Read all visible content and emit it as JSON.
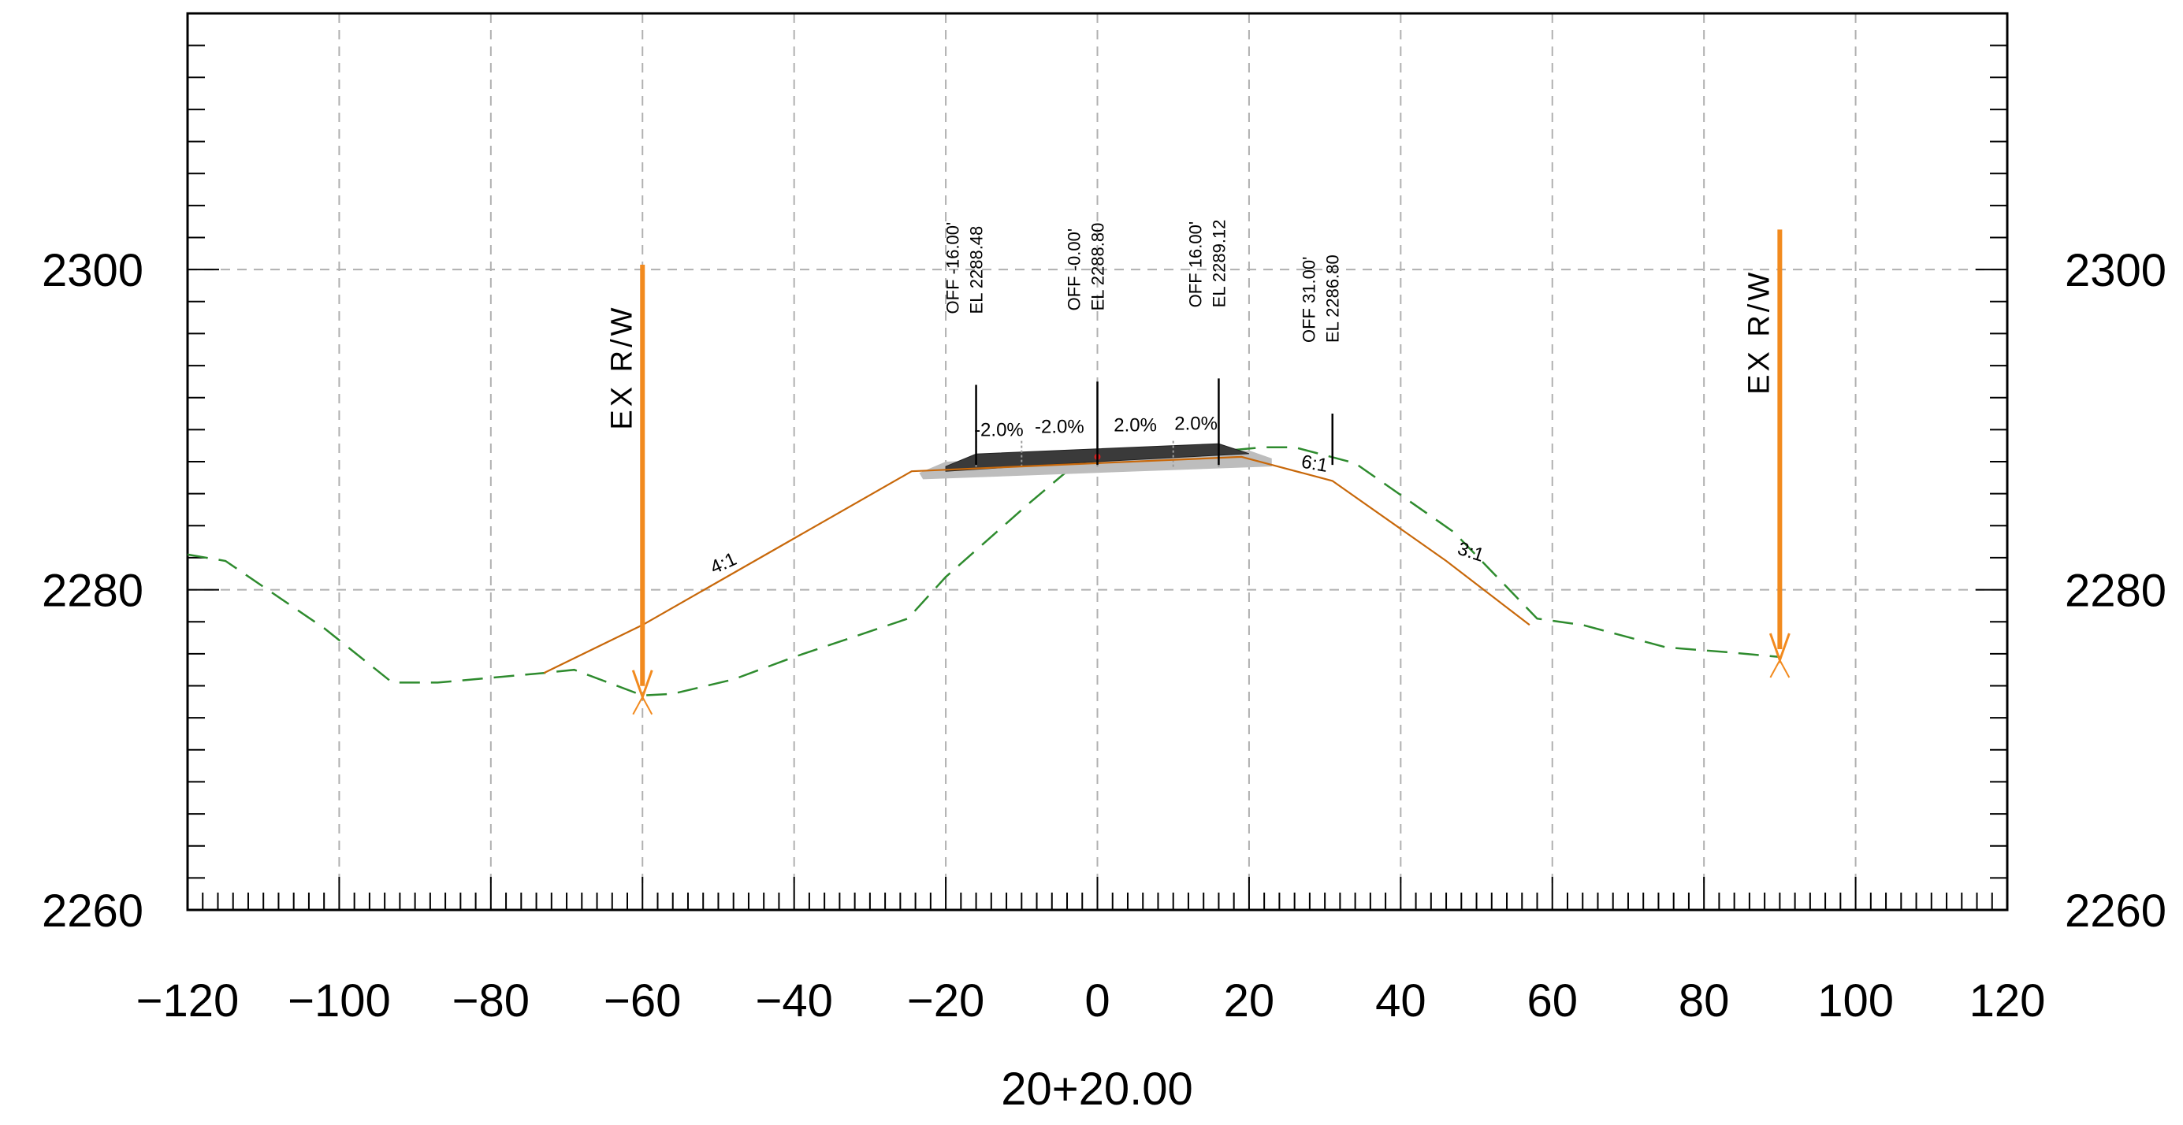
{
  "chart_data": {
    "type": "line",
    "title": "",
    "xlabel": "20+20.00",
    "ylabel": "",
    "xlim": [
      -120,
      120
    ],
    "ylim": [
      2260,
      2316
    ],
    "x_ticks": [
      -120,
      -100,
      -80,
      -60,
      -40,
      -20,
      0,
      20,
      40,
      60,
      80,
      100,
      120
    ],
    "y_ticks": [
      2260,
      2280,
      2300
    ],
    "grid": true,
    "colors": {
      "existing_ground": "#2e8b2e",
      "design_slope": "#c8680a",
      "right_of_way": "#f28a1e",
      "pavement": "#3a3a3a",
      "base": "#bdbdbd",
      "grid": "#b0b0b0"
    },
    "series": [
      {
        "role": "existing_ground",
        "style": "dashed",
        "x": [
          -120,
          -115,
          -102,
          -93,
          -87,
          -73,
          -69,
          -60,
          -56,
          -48,
          -40,
          -25,
          -20,
          -9,
          -3,
          10,
          22,
          26,
          34,
          47,
          58,
          64,
          75,
          83,
          90
        ],
        "y": [
          2282.2,
          2281.8,
          2277.6,
          2274.2,
          2274.2,
          2274.8,
          2275,
          2273.4,
          2273.5,
          2274.4,
          2275.8,
          2278.2,
          2280.8,
          2285.4,
          2287.8,
          2288.4,
          2288.9,
          2288.9,
          2287.9,
          2283.6,
          2278.2,
          2277.8,
          2276.4,
          2276.1,
          2275.8
        ]
      },
      {
        "role": "design_daylight",
        "style": "solid",
        "x": [
          -73,
          -60,
          -24.5,
          19,
          23,
          31,
          46,
          57
        ],
        "y": [
          2274.8,
          2277.8,
          2287.4,
          2288.3,
          2287.8,
          2286.8,
          2281.8,
          2277.8
        ]
      }
    ],
    "pavement": {
      "top_x": [
        -20,
        -16,
        0,
        16,
        20
      ],
      "top_y": [
        2288.0,
        2288.48,
        2288.8,
        2289.12,
        2288.7
      ]
    },
    "annotations": [
      {
        "x": -16,
        "y_top": 2292.8,
        "line1": "OFF -16.00'",
        "line2": "EL 2288.48"
      },
      {
        "x": 0,
        "y_top": 2293.0,
        "line1": "OFF -0.00'",
        "line2": "EL 2288.80"
      },
      {
        "x": 16,
        "y_top": 2293.2,
        "line1": "OFF 16.00'",
        "line2": "EL 2289.12"
      },
      {
        "x": 31,
        "y_top": 2291.0,
        "line1": "OFF 31.00'",
        "line2": "EL 2286.80"
      }
    ],
    "slope_labels": [
      {
        "x": -13,
        "y": 2289.6,
        "text": "-2.0%"
      },
      {
        "x": -5,
        "y": 2289.8,
        "text": "-2.0%"
      },
      {
        "x": 5,
        "y": 2289.9,
        "text": "2.0%"
      },
      {
        "x": 13,
        "y": 2290.0,
        "text": "2.0%"
      },
      {
        "x": -49,
        "y": 2281.3,
        "text": "4:1",
        "angle": -24
      },
      {
        "x": 28.5,
        "y": 2287.5,
        "text": "6:1",
        "angle": 10
      },
      {
        "x": 49,
        "y": 2282.0,
        "text": "3:1",
        "angle": 18
      }
    ],
    "row_markers": [
      {
        "x": -60,
        "y_top": 2300.3,
        "y_bottom": 2273.3,
        "label": "EX R/W"
      },
      {
        "x": 90,
        "y_top": 2302.5,
        "y_bottom": 2275.6,
        "label": "EX R/W"
      }
    ]
  }
}
